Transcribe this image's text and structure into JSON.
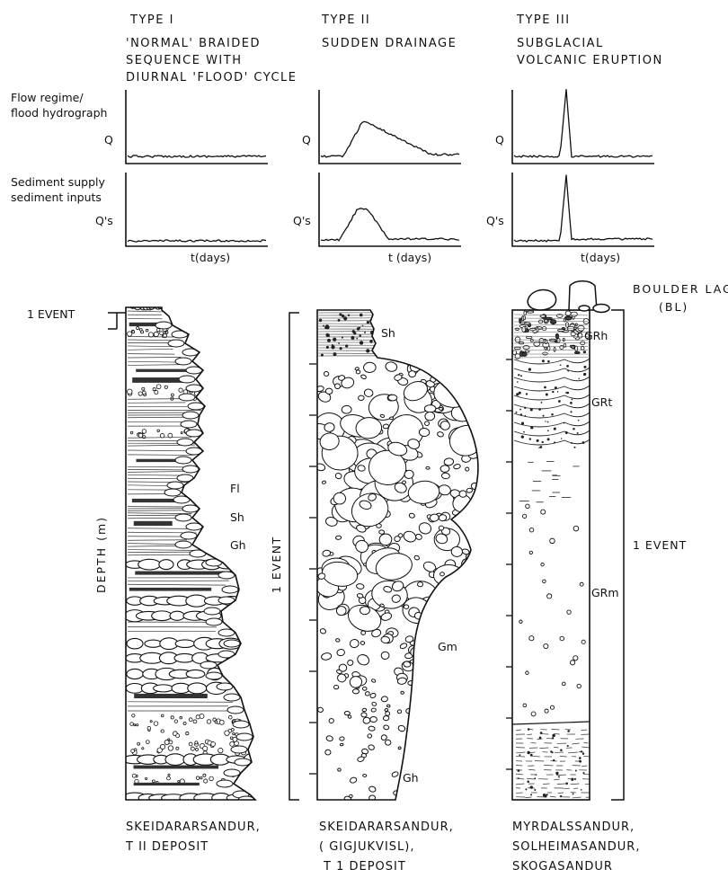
{
  "columns": [
    {
      "type": "TYPE I",
      "subtitle": [
        "'NORMAL' BRAIDED",
        "SEQUENCE WITH",
        "DIURNAL 'FLOOD' CYCLE"
      ],
      "hydrograph_label": "Q",
      "sediment_label": "Q's",
      "time_label": "t(days)",
      "event_label": "1 EVENT",
      "depth_label": "DEPTH (m)",
      "facies": [
        "Fl",
        "Sh",
        "Gh"
      ],
      "location": [
        "SKEIDARARSANDUR,",
        "T II DEPOSIT"
      ]
    },
    {
      "type": "TYPE II",
      "subtitle": [
        "SUDDEN DRAINAGE"
      ],
      "hydrograph_label": "Q",
      "sediment_label": "Q's",
      "time_label": "t (days)",
      "event_label": "1 EVENT",
      "facies": [
        "Sh",
        "Gm",
        "Gh"
      ],
      "location": [
        "SKEIDARARSANDUR,",
        "( GIGJUKVISL),",
        "T 1 DEPOSIT"
      ]
    },
    {
      "type": "TYPE III",
      "subtitle": [
        "SUBGLACIAL",
        "VOLCANIC ERUPTION"
      ],
      "hydrograph_label": "Q",
      "sediment_label": "Q's",
      "time_label": "t(days)",
      "event_label": "1 EVENT",
      "boulder_lag": [
        "BOULDER LAG",
        "(BL)"
      ],
      "facies": [
        "GRh",
        "GRt",
        "GRm"
      ],
      "location": [
        "MYRDALSSANDUR,",
        "SOLHEIMASANDUR,",
        "SKOGASANDUR"
      ]
    }
  ],
  "row_labels": {
    "flow": [
      "Flow regime/",
      "flood hydrograph"
    ],
    "sediment": [
      "Sediment supply",
      "sediment inputs"
    ]
  }
}
